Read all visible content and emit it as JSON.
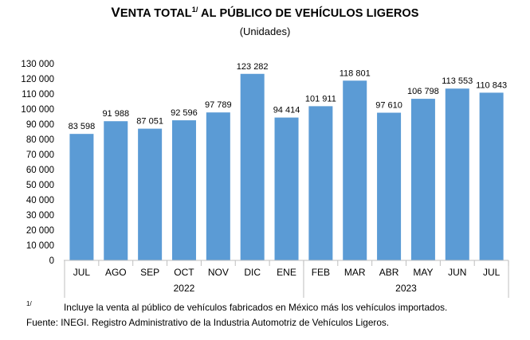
{
  "chart_data": {
    "type": "bar",
    "title_first": "V",
    "title_rest": "ENTA TOTAL",
    "title_sup": "1/",
    "title_tail": " AL PÚBLICO DE VEHÍCULOS LIGEROS",
    "subtitle": "(Unidades)",
    "categories": [
      "JUL",
      "AGO",
      "SEP",
      "OCT",
      "NOV",
      "DIC",
      "ENE",
      "FEB",
      "MAR",
      "ABR",
      "MAY",
      "JUN",
      "JUL"
    ],
    "values": [
      83598,
      91988,
      87051,
      92596,
      97789,
      123282,
      94414,
      101911,
      118801,
      97610,
      106798,
      113553,
      110843
    ],
    "value_labels": [
      "83 598",
      "91 988",
      "87 051",
      "92 596",
      "97 789",
      "123 282",
      "94 414",
      "101 911",
      "118 801",
      "97 610",
      "106 798",
      "113 553",
      "110 843"
    ],
    "years": [
      {
        "label": "2022",
        "start": 0,
        "end": 6
      },
      {
        "label": "2023",
        "start": 7,
        "end": 12
      }
    ],
    "ylim": [
      0,
      130000
    ],
    "yticks": [
      0,
      10000,
      20000,
      30000,
      40000,
      50000,
      60000,
      70000,
      80000,
      90000,
      100000,
      110000,
      120000,
      130000
    ],
    "ytick_labels": [
      "0",
      "10 000",
      "20 000",
      "30 000",
      "40 000",
      "50 000",
      "60 000",
      "70 000",
      "80 000",
      "90 000",
      "100 000",
      "110 000",
      "120 000",
      "130 000"
    ],
    "bar_color": "#5b9bd5",
    "grid": false,
    "legend": "none"
  },
  "footnote_mark": "1/",
  "footnote_text": "Incluye la venta al público de vehículos fabricados en México más los vehículos importados.",
  "source": "Fuente: INEGI. Registro Administrativo de la Industria Automotriz de Vehículos Ligeros."
}
